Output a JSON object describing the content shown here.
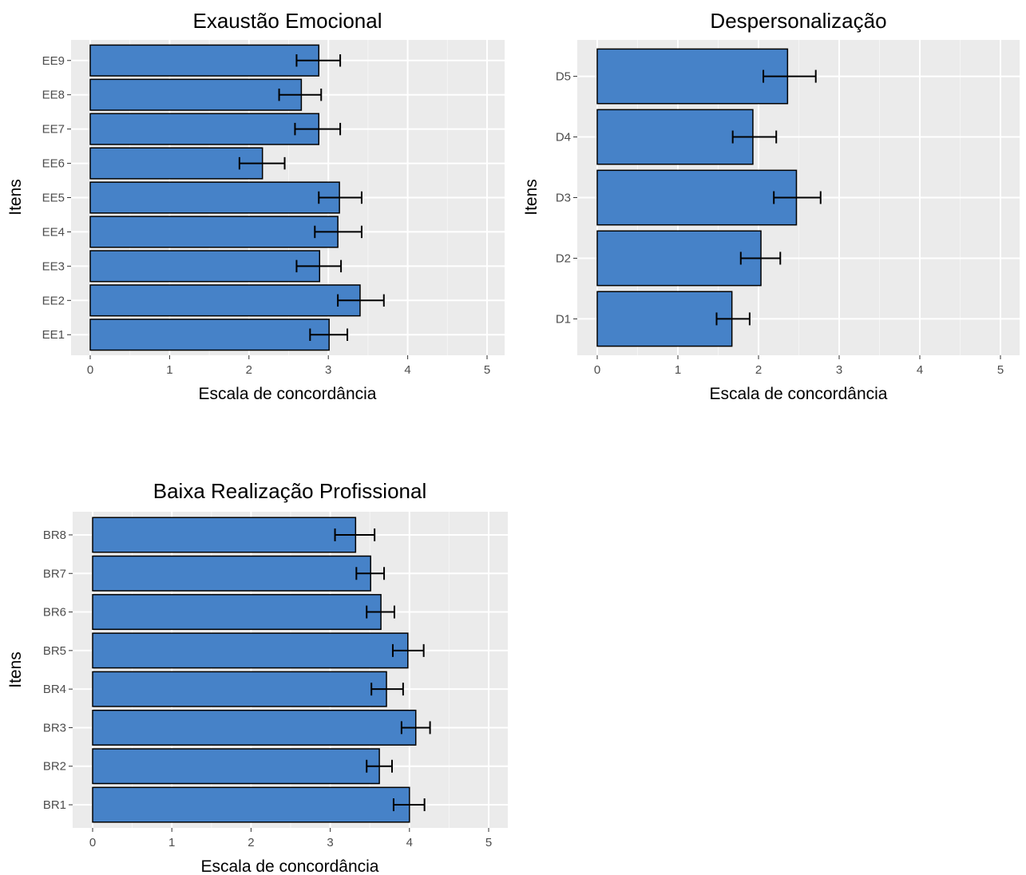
{
  "chart_data": [
    {
      "type": "bar",
      "orientation": "horizontal",
      "title": "Exaustão Emocional",
      "xlabel": "Escala de concordância",
      "ylabel": "Itens",
      "xlim": [
        0,
        5
      ],
      "xticks": [
        "0",
        "1",
        "2",
        "3",
        "4",
        "5"
      ],
      "categories": [
        "EE1",
        "EE2",
        "EE3",
        "EE4",
        "EE5",
        "EE6",
        "EE7",
        "EE8",
        "EE9"
      ],
      "values": [
        3.01,
        3.4,
        2.89,
        3.12,
        3.14,
        2.17,
        2.88,
        2.66,
        2.88
      ],
      "error_low": [
        2.77,
        3.12,
        2.6,
        2.83,
        2.88,
        1.88,
        2.58,
        2.38,
        2.6
      ],
      "error_high": [
        3.24,
        3.7,
        3.16,
        3.42,
        3.42,
        2.45,
        3.15,
        2.91,
        3.15
      ],
      "bar_color": "#4682c8",
      "grid": true
    },
    {
      "type": "bar",
      "orientation": "horizontal",
      "title": "Despersonalização",
      "xlabel": "Escala de concordância",
      "ylabel": "Itens",
      "xlim": [
        0,
        5
      ],
      "xticks": [
        "0",
        "1",
        "2",
        "3",
        "4",
        "5"
      ],
      "categories": [
        "D1",
        "D2",
        "D3",
        "D4",
        "D5"
      ],
      "values": [
        1.67,
        2.03,
        2.47,
        1.93,
        2.36
      ],
      "error_low": [
        1.48,
        1.78,
        2.19,
        1.68,
        2.06
      ],
      "error_high": [
        1.89,
        2.27,
        2.77,
        2.22,
        2.71
      ],
      "bar_color": "#4682c8",
      "grid": true
    },
    {
      "type": "bar",
      "orientation": "horizontal",
      "title": "Baixa Realização Profissional",
      "xlabel": "Escala de concordância",
      "ylabel": "Itens",
      "xlim": [
        0,
        5
      ],
      "xticks": [
        "0",
        "1",
        "2",
        "3",
        "4",
        "5"
      ],
      "categories": [
        "BR1",
        "BR2",
        "BR3",
        "BR4",
        "BR5",
        "BR6",
        "BR7",
        "BR8"
      ],
      "values": [
        4.0,
        3.62,
        4.08,
        3.71,
        3.98,
        3.64,
        3.51,
        3.32
      ],
      "error_low": [
        3.8,
        3.46,
        3.9,
        3.52,
        3.79,
        3.46,
        3.33,
        3.06
      ],
      "error_high": [
        4.19,
        3.78,
        4.26,
        3.92,
        4.18,
        3.81,
        3.68,
        3.56
      ],
      "bar_color": "#4682c8",
      "grid": true
    }
  ]
}
